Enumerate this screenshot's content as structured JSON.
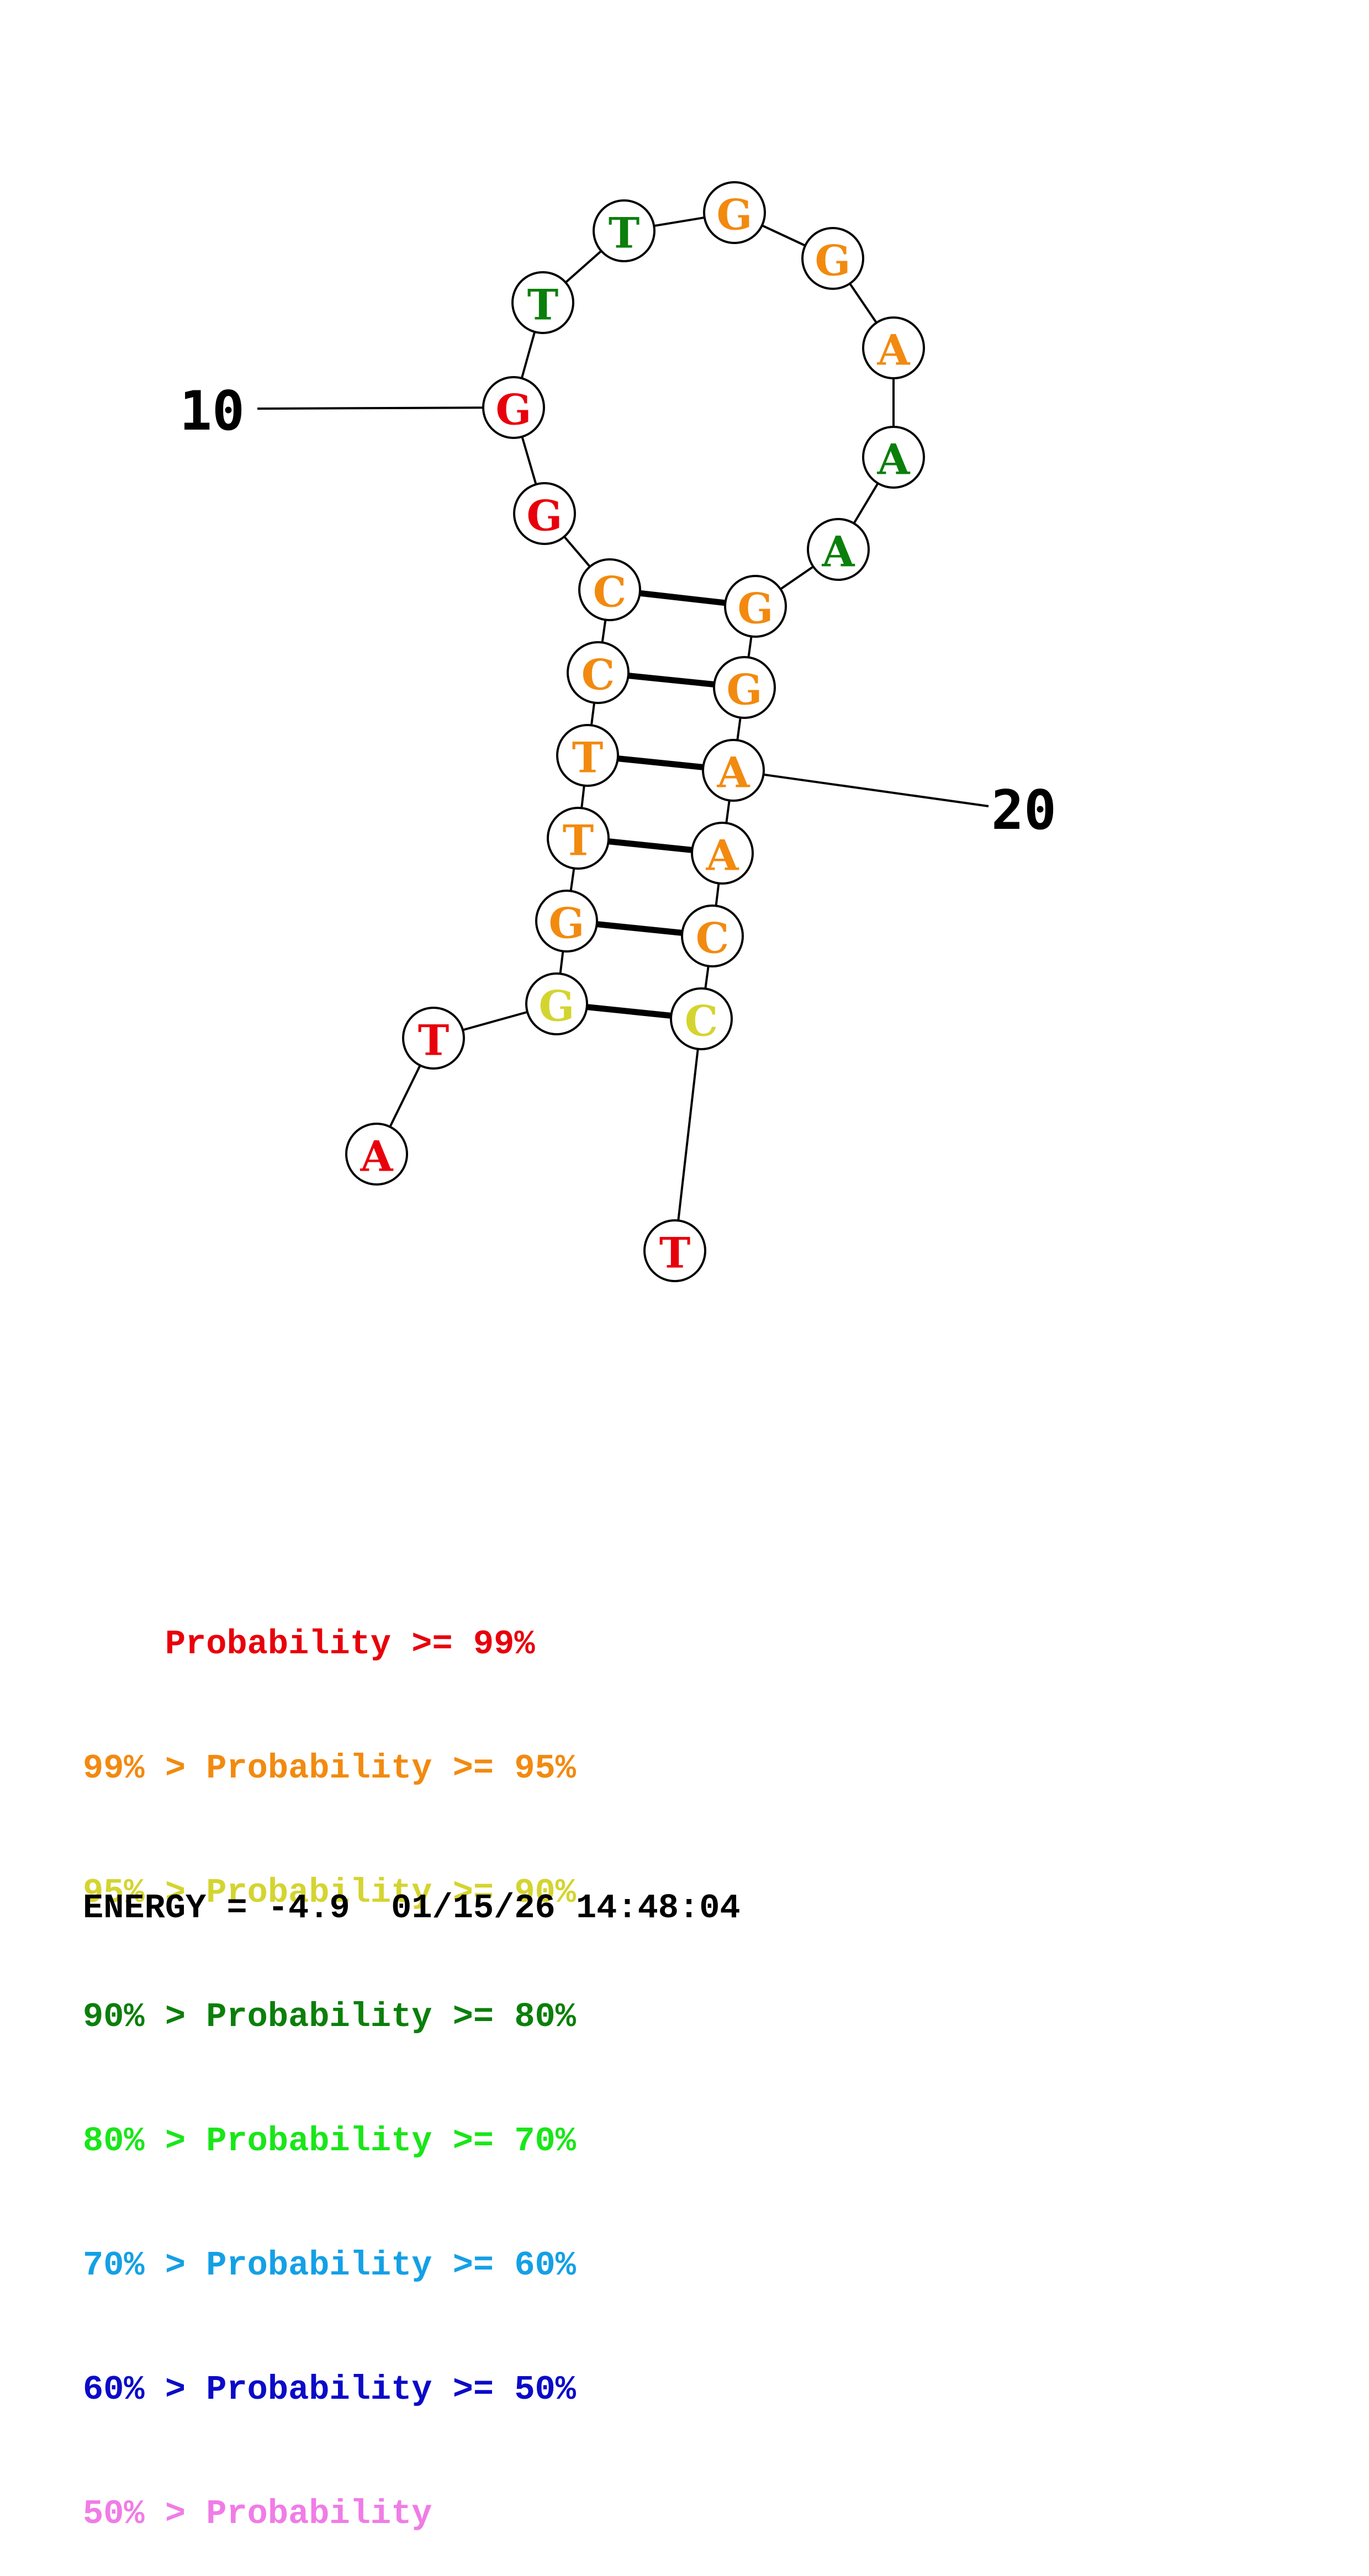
{
  "structure": {
    "nucleotides": [
      {
        "index": 1,
        "base": "A",
        "color": "#e8000b"
      },
      {
        "index": 2,
        "base": "T",
        "color": "#e8000b"
      },
      {
        "index": 3,
        "base": "G",
        "color": "#d4d430"
      },
      {
        "index": 4,
        "base": "G",
        "color": "#f28a0f"
      },
      {
        "index": 5,
        "base": "T",
        "color": "#f28a0f"
      },
      {
        "index": 6,
        "base": "T",
        "color": "#f28a0f"
      },
      {
        "index": 7,
        "base": "C",
        "color": "#f28a0f"
      },
      {
        "index": 8,
        "base": "C",
        "color": "#f28a0f"
      },
      {
        "index": 9,
        "base": "G",
        "color": "#e8000b"
      },
      {
        "index": 10,
        "base": "G",
        "color": "#e8000b"
      },
      {
        "index": 11,
        "base": "T",
        "color": "#0b7f0b"
      },
      {
        "index": 12,
        "base": "T",
        "color": "#0b7f0b"
      },
      {
        "index": 13,
        "base": "G",
        "color": "#f28a0f"
      },
      {
        "index": 14,
        "base": "G",
        "color": "#f28a0f"
      },
      {
        "index": 15,
        "base": "A",
        "color": "#f28a0f"
      },
      {
        "index": 16,
        "base": "A",
        "color": "#0b7f0b"
      },
      {
        "index": 17,
        "base": "A",
        "color": "#0b7f0b"
      },
      {
        "index": 18,
        "base": "G",
        "color": "#f28a0f"
      },
      {
        "index": 19,
        "base": "G",
        "color": "#f28a0f"
      },
      {
        "index": 20,
        "base": "A",
        "color": "#f28a0f"
      },
      {
        "index": 21,
        "base": "A",
        "color": "#f28a0f"
      },
      {
        "index": 22,
        "base": "C",
        "color": "#f28a0f"
      },
      {
        "index": 23,
        "base": "C",
        "color": "#d4d430"
      },
      {
        "index": 24,
        "base": "T",
        "color": "#e8000b"
      }
    ],
    "pairs": [
      [
        3,
        23
      ],
      [
        4,
        22
      ],
      [
        5,
        21
      ],
      [
        6,
        20
      ],
      [
        7,
        19
      ],
      [
        8,
        18
      ]
    ],
    "index_labels": [
      {
        "nucleotide": 10,
        "text": "10"
      },
      {
        "nucleotide": 20,
        "text": "20"
      }
    ]
  },
  "legend": [
    {
      "prefix": "    ",
      "text": "Probability >= 99%",
      "color": "#e8000b"
    },
    {
      "prefix": "99% > ",
      "text": "Probability >= 95%",
      "color": "#f28a0f"
    },
    {
      "prefix": "95% > ",
      "text": "Probability >= 90%",
      "color": "#d4d430"
    },
    {
      "prefix": "90% > ",
      "text": "Probability >= 80%",
      "color": "#0b7f0b"
    },
    {
      "prefix": "80% > ",
      "text": "Probability >= 70%",
      "color": "#19e619"
    },
    {
      "prefix": "70% > ",
      "text": "Probability >= 60%",
      "color": "#14a0e6"
    },
    {
      "prefix": "60% > ",
      "text": "Probability >= 50%",
      "color": "#0b0bc8"
    },
    {
      "prefix": "50% > ",
      "text": "Probability",
      "color": "#f07ce6"
    }
  ],
  "footer": {
    "energy": "ENERGY = -4.9",
    "timestamp": "01/15/26 14:48:04"
  }
}
